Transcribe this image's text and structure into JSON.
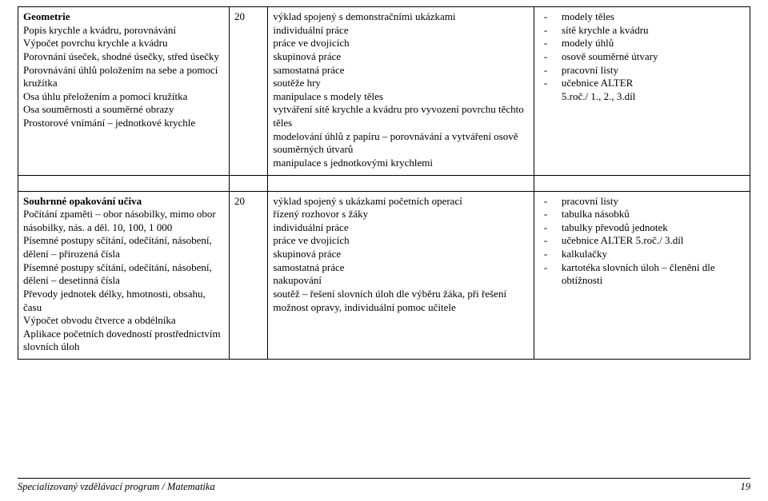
{
  "table": {
    "row1": {
      "col1": {
        "heading": "Geometrie",
        "lines": [
          "Popis krychle a kvádru, porovnávání",
          "Výpočet povrchu krychle a kvádru",
          "Porovnání úseček, shodné úsečky, střed úsečky",
          "Porovnávání úhlů položením na sebe a pomocí kružítka",
          "Osa úhlu přeložením a pomocí kružítka",
          "Osa souměrnosti a souměrné obrazy",
          "Prostorové vnímání – jednotkové krychle"
        ]
      },
      "col2": "20",
      "col3": [
        "výklad spojený s demonstračními ukázkami",
        "individuální práce",
        "práce ve dvojicích",
        "skupinová práce",
        "samostatná práce",
        "soutěže hry",
        "manipulace s modely těles",
        "vytváření sítě krychle a kvádru pro vyvození povrchu těchto těles",
        "modelování úhlů z papíru – porovnávání a vytváření osově souměrných útvarů",
        "manipulace s jednotkovými krychlemi"
      ],
      "col4": {
        "items": [
          "modely těles",
          "sítě krychle a kvádru",
          "modely úhlů",
          "osově souměrné útvary",
          "pracovní listy",
          "učebnice ALTER"
        ],
        "trailing": "5.roč./ 1., 2., 3.díl"
      }
    },
    "row2": {
      "col1": {
        "heading": "Souhrnné opakování učiva",
        "lines": [
          "Počítání zpaměti – obor násobilky, mimo obor násobilky, nás. a děl. 10, 100, 1 000",
          "Písemné postupy sčítání, odečítání, násobení, dělení – přirozená čísla",
          "Písemné postupy sčítání, odečítání, násobení, dělení – desetinná  čísla",
          "Převody jednotek délky,  hmotnosti, obsahu, času",
          "Výpočet obvodu čtverce a obdélníka",
          "Aplikace početních dovedností prostřednictvím slovních úloh"
        ]
      },
      "col2": "20",
      "col3": [
        "výklad spojený s ukázkami početních operací",
        "řízený rozhovor s žáky",
        "individuální práce",
        "práce ve dvojicích",
        "skupinová práce",
        "samostatná práce",
        "nakupování",
        "soutěž – řešení slovních úloh dle výběru žáka, při řešení možnost opravy, individuální pomoc učitele"
      ],
      "col4": {
        "items": [
          "pracovní listy",
          "tabulka násobků",
          "tabulky převodů jednotek",
          "učebnice ALTER 5.roč./ 3.díl",
          "kalkulačky",
          "kartotéka slovních úloh – členění dle obtížnosti"
        ]
      }
    }
  },
  "footer": {
    "text": "Specializovaný vzdělávací program / Matematika",
    "page": "19"
  }
}
